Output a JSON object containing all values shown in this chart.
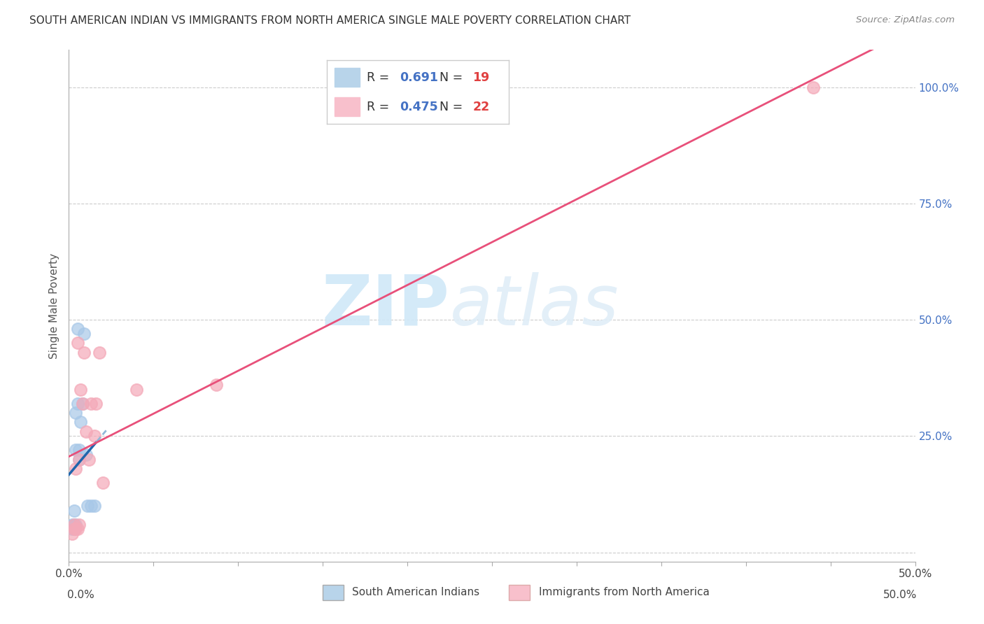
{
  "title": "SOUTH AMERICAN INDIAN VS IMMIGRANTS FROM NORTH AMERICA SINGLE MALE POVERTY CORRELATION CHART",
  "source": "Source: ZipAtlas.com",
  "ylabel": "Single Male Poverty",
  "xlim": [
    0.0,
    0.5
  ],
  "ylim": [
    -0.02,
    1.08
  ],
  "ytick_positions": [
    0.0,
    0.25,
    0.5,
    0.75,
    1.0
  ],
  "ytick_labels_right": [
    "",
    "25.0%",
    "50.0%",
    "75.0%",
    "100.0%"
  ],
  "series1_name": "South American Indians",
  "series1_color": "#a8c8e8",
  "series1_line_color": "#2166ac",
  "series1_R": "0.691",
  "series1_N": "19",
  "series1_x": [
    0.002,
    0.002,
    0.003,
    0.003,
    0.003,
    0.004,
    0.004,
    0.004,
    0.005,
    0.005,
    0.006,
    0.006,
    0.007,
    0.008,
    0.009,
    0.01,
    0.011,
    0.013,
    0.015
  ],
  "series1_y": [
    0.05,
    0.06,
    0.05,
    0.06,
    0.09,
    0.06,
    0.22,
    0.3,
    0.32,
    0.48,
    0.2,
    0.22,
    0.28,
    0.32,
    0.47,
    0.21,
    0.1,
    0.1,
    0.1
  ],
  "series2_name": "Immigrants from North America",
  "series2_color": "#f4a9b8",
  "series2_line_color": "#e8507a",
  "series2_R": "0.475",
  "series2_N": "22",
  "series2_x": [
    0.002,
    0.003,
    0.003,
    0.004,
    0.004,
    0.005,
    0.005,
    0.006,
    0.006,
    0.007,
    0.008,
    0.009,
    0.01,
    0.012,
    0.013,
    0.015,
    0.016,
    0.018,
    0.02,
    0.04,
    0.087,
    0.44
  ],
  "series2_y": [
    0.04,
    0.05,
    0.06,
    0.05,
    0.18,
    0.05,
    0.45,
    0.06,
    0.2,
    0.35,
    0.32,
    0.43,
    0.26,
    0.2,
    0.32,
    0.25,
    0.32,
    0.43,
    0.15,
    0.35,
    0.36,
    1.0
  ],
  "background_color": "#ffffff",
  "grid_color": "#cccccc",
  "right_tick_color": "#4472c4",
  "legend_patch1_color": "#b8d4ea",
  "legend_patch2_color": "#f8c0cc",
  "legend_R_color": "#4472c4",
  "legend_N_color": "#e04040",
  "watermark_color": "#d0e8f8"
}
